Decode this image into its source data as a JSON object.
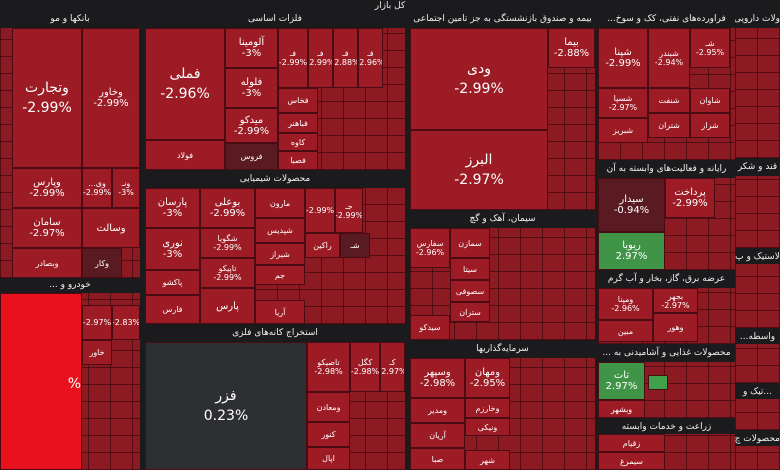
{
  "chart_data": {
    "type": "treemap",
    "title": "کل بازار",
    "sectors": [
      {
        "name": "بانکها و مو",
        "cells": [
          {
            "label": "وتجارت",
            "change": "-2.99%"
          },
          {
            "label": "وخاور",
            "change": "-2.99%"
          },
          {
            "label": "وپارس",
            "change": "-2.99%"
          },
          {
            "label": "وی...",
            "change": "-2.99%"
          },
          {
            "label": "ونـ",
            "change": "-3%"
          },
          {
            "label": "سامان",
            "change": "-2.97%"
          },
          {
            "label": "وبصادر"
          },
          {
            "label": "وسالت"
          },
          {
            "label": "وکار"
          }
        ]
      },
      {
        "name": "خودرو و ...",
        "cells": [
          {
            "change": "%"
          },
          {
            "change": "-2.97%"
          },
          {
            "change": "-2.83%"
          },
          {
            "label": "خاور"
          }
        ]
      },
      {
        "name": "فلزات اساسی",
        "cells": [
          {
            "label": "فملی",
            "change": "-2.96%"
          },
          {
            "label": "فولاد"
          },
          {
            "label": "آلومینا",
            "change": "-3%"
          },
          {
            "label": "فلوله",
            "change": "-3%"
          },
          {
            "label": "میدکو",
            "change": "-2.99%"
          },
          {
            "label": "فروس"
          },
          {
            "label": "فـ",
            "change": "-2.99%"
          },
          {
            "label": "فـ",
            "change": "-2.99%"
          },
          {
            "label": "فـ",
            "change": "-2.88%"
          },
          {
            "label": "فـ",
            "change": "-2.96%"
          },
          {
            "label": "فخاس"
          },
          {
            "label": "فباهنر"
          },
          {
            "label": "کاوه"
          },
          {
            "label": "فصبا"
          }
        ]
      },
      {
        "name": "محصولات شیمیایی",
        "cells": [
          {
            "label": "پارسان",
            "change": "-3%"
          },
          {
            "label": "نوری",
            "change": "-3%"
          },
          {
            "label": "پاکشو"
          },
          {
            "label": "فارس"
          },
          {
            "label": "بوعلی",
            "change": "-2.99%"
          },
          {
            "label": "شگویا",
            "change": "-2.99%"
          },
          {
            "label": "تاپیکو",
            "change": "-2.99%"
          },
          {
            "label": "پارس"
          },
          {
            "label": "مارون"
          },
          {
            "label": "شپدیس"
          },
          {
            "label": "شیراز"
          },
          {
            "label": "جم"
          },
          {
            "label": "آریا"
          },
          {
            "change": "-2.99%"
          },
          {
            "label": "جـ",
            "change": "-2.99%"
          },
          {
            "label": "راکین"
          },
          {
            "label": "شـ"
          }
        ]
      },
      {
        "name": "استخراج کانه‌های فلزی",
        "cells": [
          {
            "label": "فزر",
            "change": "0.23%"
          },
          {
            "label": "تاصیکو",
            "change": "-2.98%"
          },
          {
            "label": "کگل",
            "change": "-2.98%"
          },
          {
            "label": "کـ",
            "change": "-2.97%"
          },
          {
            "label": "ومعادن"
          },
          {
            "label": "کنور"
          },
          {
            "label": "اپال"
          }
        ]
      },
      {
        "name": "بیمه و صندوق بازنشستگی به جز تامین اجتماعی",
        "cells": [
          {
            "label": "ودی",
            "change": "-2.99%"
          },
          {
            "label": "البرز",
            "change": "-2.97%"
          },
          {
            "label": "بیما",
            "change": "-2.88%"
          }
        ]
      },
      {
        "name": "سیمان، آهک و گچ",
        "cells": [
          {
            "label": "سفارس",
            "change": "-2.96%"
          },
          {
            "label": "سمازن"
          },
          {
            "label": "سیتا"
          },
          {
            "label": "سصوفی"
          },
          {
            "label": "ستران"
          },
          {
            "label": "سیدکو"
          }
        ]
      },
      {
        "name": "سرمایه‌گذاریها",
        "cells": [
          {
            "label": "وسپهر",
            "change": "-2.98%"
          },
          {
            "label": "ومهان",
            "change": "-2.95%"
          },
          {
            "label": "ومدیر"
          },
          {
            "label": "وخارزم"
          },
          {
            "label": "آریان"
          },
          {
            "label": "ونیکی"
          },
          {
            "label": "صبا"
          },
          {
            "label": "شهر"
          }
        ]
      },
      {
        "name": "فراورده‌های نفتی، کک و سوخ...",
        "cells": [
          {
            "label": "شپنا",
            "change": "-2.99%"
          },
          {
            "label": "شبندر",
            "change": "-2.94%"
          },
          {
            "label": "شـ",
            "change": "-2.95%"
          },
          {
            "label": "شسپا",
            "change": "-2.97%"
          },
          {
            "label": "شبریز"
          },
          {
            "label": "شنفت"
          },
          {
            "label": "شتران"
          },
          {
            "label": "شاوان"
          },
          {
            "label": "شراز"
          }
        ]
      },
      {
        "name": "رایانه و فعالیت‌های وابسته به آن",
        "cells": [
          {
            "label": "سیدار",
            "change": "-0.94%"
          },
          {
            "label": "پرداخت",
            "change": "-2.99%"
          },
          {
            "label": "ریوبا",
            "change": "2.97%"
          }
        ]
      },
      {
        "name": "عرضه برق، گاز، بخار و آب گرم",
        "cells": [
          {
            "label": "ومپنا",
            "change": "-2.96%"
          },
          {
            "label": "بجهر",
            "change": "-2.97%"
          },
          {
            "label": "مبین"
          },
          {
            "label": "وهور"
          }
        ]
      },
      {
        "name": "محصولات غذایی و آشامیدنی به ...",
        "cells": [
          {
            "label": "تات",
            "change": "2.97%"
          },
          {
            "label": "وبشهر"
          }
        ]
      },
      {
        "name": "زراعت و خدمات وابسته",
        "cells": [
          {
            "label": "زقیام"
          },
          {
            "label": "سیمرغ"
          }
        ]
      },
      {
        "name": "ولات دارویی",
        "cells": []
      },
      {
        "name": "قند و شکر",
        "cells": []
      },
      {
        "name": "لاستیک و پ",
        "cells": []
      },
      {
        "name": "واسطه...",
        "cells": []
      },
      {
        "name": "...تیک و",
        "cells": []
      },
      {
        "name": "محصولات چ...",
        "cells": []
      }
    ]
  }
}
